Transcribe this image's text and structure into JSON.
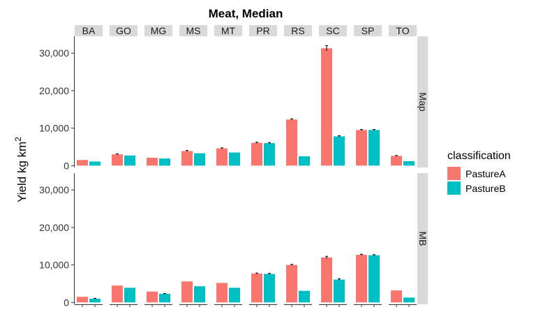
{
  "chart_data": {
    "type": "bar",
    "title": "Meat, Median",
    "ylabel": "Yield kg km",
    "ylabel_superscript": "2",
    "xlabel": "",
    "categories": [
      "BA",
      "GO",
      "MG",
      "MS",
      "MT",
      "PR",
      "RS",
      "SC",
      "SP",
      "TO"
    ],
    "row_facets": [
      "Map",
      "MB"
    ],
    "ylim": [
      -500,
      34500
    ],
    "y_ticks": [
      0,
      10000,
      20000,
      30000
    ],
    "y_tick_labels": [
      "0",
      "10,000",
      "20,000",
      "30,000"
    ],
    "grid": false,
    "legend": {
      "title": "classification",
      "position": "right",
      "entries": [
        {
          "label": "PastureA",
          "color": "#F8766D"
        },
        {
          "label": "PastureB",
          "color": "#00BFC4"
        }
      ]
    },
    "panels": [
      {
        "facet": "Map",
        "series": [
          {
            "name": "PastureA",
            "values": [
              1500,
              3000,
              2100,
              3900,
              4600,
              6100,
              12300,
              31300,
              9500,
              2600
            ],
            "error": [
              0,
              150,
              0,
              150,
              150,
              150,
              200,
              700,
              150,
              100
            ]
          },
          {
            "name": "PastureB",
            "values": [
              1100,
              2700,
              1900,
              3300,
              3500,
              6000,
              2500,
              7800,
              9500,
              1200
            ],
            "error": [
              0,
              0,
              0,
              0,
              0,
              150,
              0,
              200,
              150,
              0
            ]
          }
        ]
      },
      {
        "facet": "MB",
        "series": [
          {
            "name": "PastureA",
            "values": [
              1500,
              4500,
              2900,
              5600,
              5200,
              7700,
              10000,
              12000,
              12700,
              3200
            ],
            "error": [
              0,
              0,
              0,
              0,
              0,
              150,
              150,
              300,
              150,
              0
            ]
          },
          {
            "name": "PastureB",
            "values": [
              1000,
              3900,
              2300,
              4300,
              3900,
              7600,
              3100,
              6100,
              12600,
              1300
            ],
            "error": [
              100,
              0,
              100,
              0,
              0,
              150,
              0,
              200,
              150,
              0
            ]
          }
        ]
      }
    ]
  }
}
